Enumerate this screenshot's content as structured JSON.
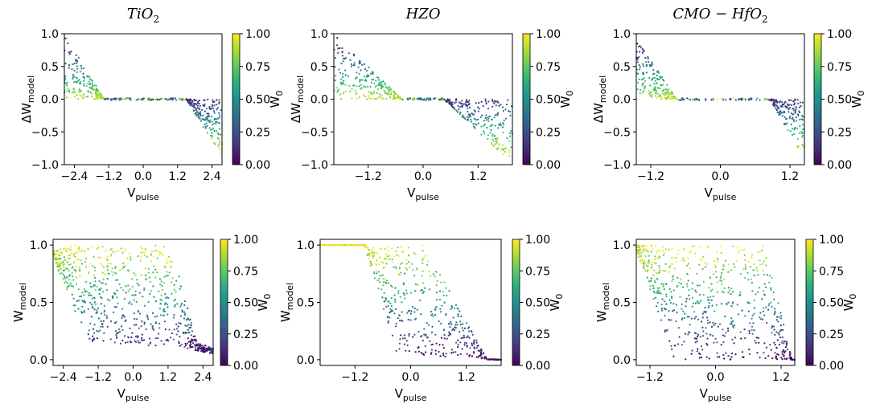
{
  "chart_data": [
    {
      "type": "scatter",
      "title": "TiO2",
      "xlabel": "V_pulse",
      "ylabel": "ΔW_model",
      "xlim": [
        -2.75,
        2.75
      ],
      "ylim": [
        -1,
        1
      ],
      "xticks": [
        "−2.4",
        "−1.2",
        "0.0",
        "1.2",
        "2.4"
      ],
      "yticks": [
        "−1.0",
        "−0.5",
        "0.0",
        "0.5",
        "1.0"
      ],
      "colorbar": {
        "label": "W_0",
        "range": [
          0,
          1
        ],
        "ticks": [
          "0.00",
          "0.25",
          "0.50",
          "0.75",
          "1.00"
        ],
        "colormap": "viridis"
      },
      "regions": [
        {
          "desc": "depression",
          "x_range": [
            -2.75,
            -1.35
          ],
          "y_at_min_x": 1.0,
          "y_at_max_x": 0.0,
          "points": 180
        },
        {
          "desc": "potentiation",
          "x_range": [
            1.5,
            2.75
          ],
          "y_at_min_x": 0.0,
          "y_at_max_x": -0.9,
          "points": 180
        },
        {
          "desc": "flat",
          "x_range": [
            -1.35,
            1.5
          ],
          "y": 0.0,
          "points": 90
        }
      ]
    },
    {
      "type": "scatter",
      "title": "HZO",
      "xlabel": "V_pulse",
      "ylabel": "ΔW_model",
      "xlim": [
        -1.95,
        1.95
      ],
      "ylim": [
        -1,
        1
      ],
      "xticks": [
        "−1.2",
        "0.0",
        "1.2"
      ],
      "yticks": [
        "−1.0",
        "−0.5",
        "0.0",
        "0.5",
        "1.0"
      ],
      "colorbar": {
        "label": "W_0",
        "range": [
          0,
          1
        ],
        "ticks": [
          "0.00",
          "0.25",
          "0.50",
          "0.75",
          "1.00"
        ],
        "colormap": "viridis"
      },
      "regions": [
        {
          "desc": "depression",
          "x_range": [
            -1.95,
            -0.45
          ],
          "y_at_min_x": 1.0,
          "y_at_max_x": 0.0,
          "points": 220
        },
        {
          "desc": "potentiation",
          "x_range": [
            0.45,
            1.95
          ],
          "y_at_min_x": 0.0,
          "y_at_max_x": -1.0,
          "points": 220
        },
        {
          "desc": "flat",
          "x_range": [
            -0.45,
            0.45
          ],
          "y": 0.0,
          "points": 50
        }
      ]
    },
    {
      "type": "scatter",
      "title": "CMO − HfO2",
      "xlabel": "V_pulse",
      "ylabel": "ΔW_model",
      "xlim": [
        -1.45,
        1.45
      ],
      "ylim": [
        -1,
        1
      ],
      "xticks": [
        "−1.2",
        "0.0",
        "1.2"
      ],
      "yticks": [
        "−1.0",
        "−0.5",
        "0.0",
        "0.5",
        "1.0"
      ],
      "colorbar": {
        "label": "W_0",
        "range": [
          0,
          1
        ],
        "ticks": [
          "0.00",
          "0.25",
          "0.50",
          "0.75",
          "1.00"
        ],
        "colormap": "viridis"
      },
      "regions": [
        {
          "desc": "depression",
          "x_range": [
            -1.45,
            -0.75
          ],
          "y_at_min_x": 0.95,
          "y_at_max_x": 0.0,
          "points": 170
        },
        {
          "desc": "potentiation",
          "x_range": [
            0.85,
            1.45
          ],
          "y_at_min_x": 0.0,
          "y_at_max_x": -0.9,
          "points": 150
        },
        {
          "desc": "flat",
          "x_range": [
            -0.75,
            0.85
          ],
          "y": 0.0,
          "points": 60
        }
      ]
    },
    {
      "type": "scatter",
      "xlabel": "V_pulse",
      "ylabel": "W_model",
      "xlim": [
        -2.75,
        2.75
      ],
      "ylim": [
        -0.05,
        1.05
      ],
      "xticks": [
        "−2.4",
        "−1.2",
        "0.0",
        "1.2",
        "2.4"
      ],
      "yticks": [
        "0.0",
        "0.5",
        "1.0"
      ],
      "colorbar": {
        "label": "W_0",
        "range": [
          0,
          1
        ],
        "ticks": [
          "0.00",
          "0.25",
          "0.50",
          "0.75",
          "1.00"
        ],
        "colormap": "viridis"
      },
      "regions": [
        {
          "desc": "band",
          "x_range": [
            -2.75,
            2.75
          ],
          "lower": [
            [
              -2.75,
              0.9
            ],
            [
              -1.6,
              0.15
            ],
            [
              1.8,
              0.1
            ],
            [
              2.75,
              0.05
            ]
          ],
          "upper": [
            [
              -2.75,
              0.95
            ],
            [
              -2.1,
              1.0
            ],
            [
              1.3,
              1.0
            ],
            [
              2.2,
              0.15
            ],
            [
              2.75,
              0.1
            ]
          ],
          "points": 750
        }
      ]
    },
    {
      "type": "scatter",
      "xlabel": "V_pulse",
      "ylabel": "W_model",
      "xlim": [
        -1.95,
        1.95
      ],
      "ylim": [
        -0.05,
        1.05
      ],
      "xticks": [
        "−1.2",
        "0.0",
        "1.2"
      ],
      "yticks": [
        "0.0",
        "0.5",
        "1.0"
      ],
      "colorbar": {
        "label": "W_0",
        "range": [
          0,
          1
        ],
        "ticks": [
          "0.00",
          "0.25",
          "0.50",
          "0.75",
          "1.00"
        ],
        "colormap": "viridis"
      },
      "regions": [
        {
          "desc": "band",
          "x_range": [
            -1.95,
            1.95
          ],
          "lower": [
            [
              -1.95,
              1.0
            ],
            [
              -1.0,
              1.0
            ],
            [
              -0.3,
              0.05
            ],
            [
              1.95,
              0.0
            ]
          ],
          "upper": [
            [
              -1.95,
              1.0
            ],
            [
              0.3,
              1.0
            ],
            [
              1.65,
              0.0
            ],
            [
              1.95,
              0.0
            ]
          ],
          "points": 650
        }
      ]
    },
    {
      "type": "scatter",
      "xlabel": "V_pulse",
      "ylabel": "W_model",
      "xlim": [
        -1.45,
        1.45
      ],
      "ylim": [
        -0.05,
        1.05
      ],
      "xticks": [
        "−1.2",
        "0.0",
        "1.2"
      ],
      "yticks": [
        "0.0",
        "0.5",
        "1.0"
      ],
      "colorbar": {
        "label": "W_0",
        "range": [
          0,
          1
        ],
        "ticks": [
          "0.00",
          "0.25",
          "0.50",
          "0.75",
          "1.00"
        ],
        "colormap": "viridis"
      },
      "regions": [
        {
          "desc": "band",
          "x_range": [
            -1.45,
            1.45
          ],
          "lower": [
            [
              -1.45,
              0.95
            ],
            [
              -0.75,
              0.0
            ],
            [
              1.45,
              0.0
            ]
          ],
          "upper": [
            [
              -1.45,
              1.0
            ],
            [
              0.9,
              1.0
            ],
            [
              1.4,
              0.0
            ],
            [
              1.45,
              0.0
            ]
          ],
          "points": 650
        }
      ]
    }
  ]
}
